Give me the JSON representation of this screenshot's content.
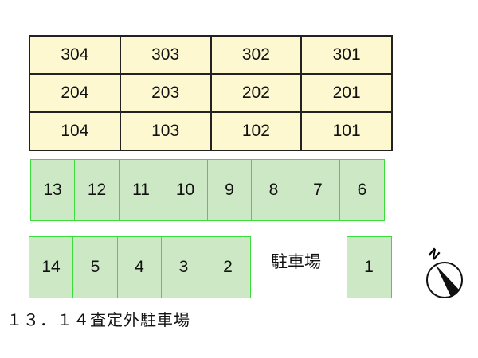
{
  "building_units": [
    [
      "304",
      "303",
      "302",
      "301"
    ],
    [
      "204",
      "203",
      "202",
      "201"
    ],
    [
      "104",
      "103",
      "102",
      "101"
    ]
  ],
  "parking_row1": [
    "13",
    "12",
    "11",
    "10",
    "9",
    "8",
    "7",
    "6"
  ],
  "parking_row2": [
    "14",
    "5",
    "4",
    "3",
    "2"
  ],
  "parking_single": "1",
  "parking_label": "駐車場",
  "note": "１３．１４査定外駐車場",
  "compass": {
    "label": "N",
    "icon": "north-arrow-icon"
  },
  "colors": {
    "unit_fill": "#fdf8d0",
    "spot_fill": "#cde8c4",
    "spot_border": "#3ddc3d"
  }
}
